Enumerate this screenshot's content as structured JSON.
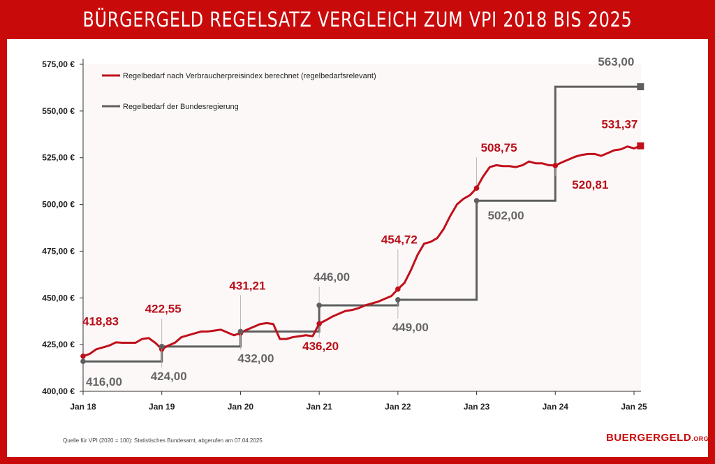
{
  "header": {
    "title": "BÜRGERGELD REGELSATZ VERGLEICH ZUM VPI 2018 BIS 2025"
  },
  "watermark": {
    "line1": "BUERGERG",
    "line2": "GELD",
    "suffix": "ORG"
  },
  "footer": {
    "source": "Quelle für VPI (2020 = 100): Statistisches Bundesamt, abgerufen am 07.04.2025",
    "logo_main": "BUERGERGELD",
    "logo_suffix": ".ORG"
  },
  "colors": {
    "red": "#c0101a",
    "gray": "#5f5f5f",
    "frame": "#c90a0a"
  },
  "chart_data": {
    "type": "line",
    "title": "BÜRGERGELD REGELSATZ VERGLEICH ZUM VPI 2018 BIS 2025",
    "xlabel": "",
    "ylabel": "",
    "ylim": [
      400,
      575
    ],
    "y_ticks": [
      400,
      425,
      450,
      475,
      500,
      525,
      550,
      575
    ],
    "y_tick_labels": [
      "400,00 €",
      "425,00 €",
      "450,00 €",
      "475,00 €",
      "500,00 €",
      "525,00 €",
      "550,00 €",
      "575,00 €"
    ],
    "x_ticks": [
      2018,
      2019,
      2020,
      2021,
      2022,
      2023,
      2024,
      2025
    ],
    "x_tick_labels": [
      "Jan 18",
      "Jan 19",
      "Jan 20",
      "Jan 21",
      "Jan 22",
      "Jan 23",
      "Jan 24",
      "Jan 25"
    ],
    "grid": false,
    "legend_position": "top-left",
    "series": [
      {
        "name": "Regelbedarf nach Verbraucherpreisindex berechnet (regelbedarfsrelevant)",
        "color": "#c0101a",
        "x": [
          2018.0,
          2018.083,
          2018.167,
          2018.25,
          2018.333,
          2018.417,
          2018.5,
          2018.583,
          2018.667,
          2018.75,
          2018.833,
          2018.917,
          2019.0,
          2019.083,
          2019.167,
          2019.25,
          2019.333,
          2019.417,
          2019.5,
          2019.583,
          2019.667,
          2019.75,
          2019.833,
          2019.917,
          2020.0,
          2020.083,
          2020.167,
          2020.25,
          2020.333,
          2020.417,
          2020.5,
          2020.583,
          2020.667,
          2020.75,
          2020.833,
          2020.917,
          2021.0,
          2021.083,
          2021.167,
          2021.25,
          2021.333,
          2021.417,
          2021.5,
          2021.583,
          2021.667,
          2021.75,
          2021.833,
          2021.917,
          2022.0,
          2022.083,
          2022.167,
          2022.25,
          2022.333,
          2022.417,
          2022.5,
          2022.583,
          2022.667,
          2022.75,
          2022.833,
          2022.917,
          2023.0,
          2023.083,
          2023.167,
          2023.25,
          2023.333,
          2023.417,
          2023.5,
          2023.583,
          2023.667,
          2023.75,
          2023.833,
          2023.917,
          2024.0,
          2024.083,
          2024.167,
          2024.25,
          2024.333,
          2024.417,
          2024.5,
          2024.583,
          2024.667,
          2024.75,
          2024.833,
          2024.917,
          2025.0,
          2025.083
        ],
        "values": [
          418.83,
          420.0,
          422.5,
          423.5,
          424.5,
          426.2,
          426.0,
          426.0,
          426.0,
          428.0,
          428.5,
          426.0,
          422.55,
          424.5,
          426.0,
          429.0,
          430.0,
          431.0,
          432.0,
          432.0,
          432.5,
          433.0,
          431.5,
          430.0,
          431.21,
          433.0,
          434.5,
          436.0,
          436.5,
          436.0,
          428.0,
          428.0,
          429.0,
          429.5,
          430.0,
          429.5,
          436.2,
          438.0,
          440.0,
          441.5,
          443.0,
          443.5,
          444.5,
          446.0,
          447.0,
          448.0,
          449.5,
          451.0,
          454.72,
          458.0,
          465.0,
          473.0,
          479.0,
          480.0,
          482.0,
          487.0,
          494.0,
          500.0,
          503.0,
          505.0,
          508.75,
          515.0,
          520.0,
          521.0,
          520.5,
          520.5,
          520.0,
          521.0,
          523.0,
          522.0,
          522.0,
          521.0,
          520.81,
          522.5,
          524.0,
          525.5,
          526.5,
          527.0,
          527.0,
          526.0,
          527.5,
          529.0,
          529.5,
          531.0,
          530.0,
          531.37
        ]
      },
      {
        "name": "Regelbedarf der Bundesregierung",
        "color": "#5f5f5f",
        "x": [
          2018.0,
          2019.0,
          2020.0,
          2021.0,
          2022.0,
          2023.0,
          2024.0,
          2025.083
        ],
        "values": [
          416.0,
          424.0,
          432.0,
          446.0,
          449.0,
          502.0,
          563.0,
          563.0
        ]
      }
    ],
    "annotations": [
      {
        "series": 0,
        "x": 2018.0,
        "y": 418.83,
        "text": "418,83"
      },
      {
        "series": 0,
        "x": 2019.0,
        "y": 422.55,
        "text": "422,55"
      },
      {
        "series": 0,
        "x": 2020.0,
        "y": 431.21,
        "text": "431,21"
      },
      {
        "series": 0,
        "x": 2021.0,
        "y": 436.2,
        "text": "436,20"
      },
      {
        "series": 0,
        "x": 2022.0,
        "y": 454.72,
        "text": "454,72"
      },
      {
        "series": 0,
        "x": 2023.0,
        "y": 508.75,
        "text": "508,75"
      },
      {
        "series": 0,
        "x": 2024.0,
        "y": 520.81,
        "text": "520,81"
      },
      {
        "series": 0,
        "x": 2025.083,
        "y": 531.37,
        "text": "531,37"
      },
      {
        "series": 1,
        "x": 2018.0,
        "y": 416.0,
        "text": "416,00"
      },
      {
        "series": 1,
        "x": 2019.0,
        "y": 424.0,
        "text": "424,00"
      },
      {
        "series": 1,
        "x": 2020.0,
        "y": 432.0,
        "text": "432,00"
      },
      {
        "series": 1,
        "x": 2021.0,
        "y": 446.0,
        "text": "446,00"
      },
      {
        "series": 1,
        "x": 2022.0,
        "y": 449.0,
        "text": "449,00"
      },
      {
        "series": 1,
        "x": 2023.0,
        "y": 502.0,
        "text": "502,00"
      },
      {
        "series": 1,
        "x": 2025.083,
        "y": 563.0,
        "text": "563,00"
      }
    ]
  }
}
